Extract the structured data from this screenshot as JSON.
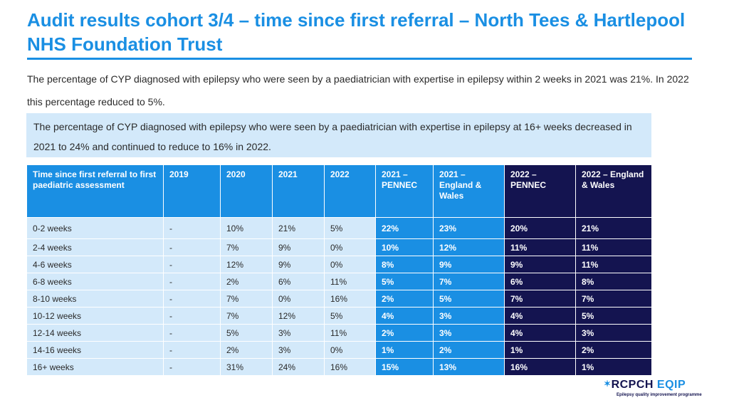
{
  "title": "Audit results cohort 3/4 – time since first referral – North Tees & Hartlepool NHS Foundation Trust",
  "intro": "The percentage of CYP diagnosed with epilepsy who were seen by a paediatrician with expertise in epilepsy within 2 weeks in 2021 was 21%. In 2022 this percentage reduced to 5%.",
  "callout": "The percentage of CYP diagnosed with epilepsy who were seen by a paediatrician with expertise in epilepsy at 16+ weeks decreased in 2021 to 24% and continued to reduce to 16% in 2022.",
  "table": {
    "headers": [
      "Time since first referral to first paediatric assessment",
      "2019",
      "2020",
      "2021",
      "2022",
      "2021 – PENNEC",
      "2021 – England & Wales",
      "2022 – PENNEC",
      "2022 – England & Wales"
    ],
    "rows": [
      [
        "0-2 weeks",
        "-",
        "10%",
        "21%",
        "5%",
        "22%",
        "23%",
        "20%",
        "21%"
      ],
      [
        "2-4 weeks",
        "-",
        "7%",
        "9%",
        "0%",
        "10%",
        "12%",
        "11%",
        "11%"
      ],
      [
        "4-6 weeks",
        "-",
        "12%",
        "9%",
        "0%",
        "8%",
        "9%",
        "9%",
        "11%"
      ],
      [
        "6-8 weeks",
        "-",
        "2%",
        "6%",
        "11%",
        "5%",
        "7%",
        "6%",
        "8%"
      ],
      [
        "8-10 weeks",
        "-",
        "7%",
        "0%",
        "16%",
        "2%",
        "5%",
        "7%",
        "7%"
      ],
      [
        "10-12 weeks",
        "-",
        "7%",
        "12%",
        "5%",
        "4%",
        "3%",
        "4%",
        "5%"
      ],
      [
        "12-14 weeks",
        "-",
        "5%",
        "3%",
        "11%",
        "2%",
        "3%",
        "4%",
        "3%"
      ],
      [
        "14-16 weeks",
        "-",
        "2%",
        "3%",
        "0%",
        "1%",
        "2%",
        "1%",
        "2%"
      ],
      [
        "16+ weeks",
        "-",
        "31%",
        "24%",
        "16%",
        "15%",
        "13%",
        "16%",
        "1%"
      ]
    ]
  },
  "logo": {
    "name_part1": "RCPCH",
    "name_part2": "EQIP",
    "tagline": "Epilepsy quality improvement programme"
  },
  "colors": {
    "accent": "#1a8fe3",
    "navy": "#141450",
    "light_blue": "#d3e9fa"
  }
}
